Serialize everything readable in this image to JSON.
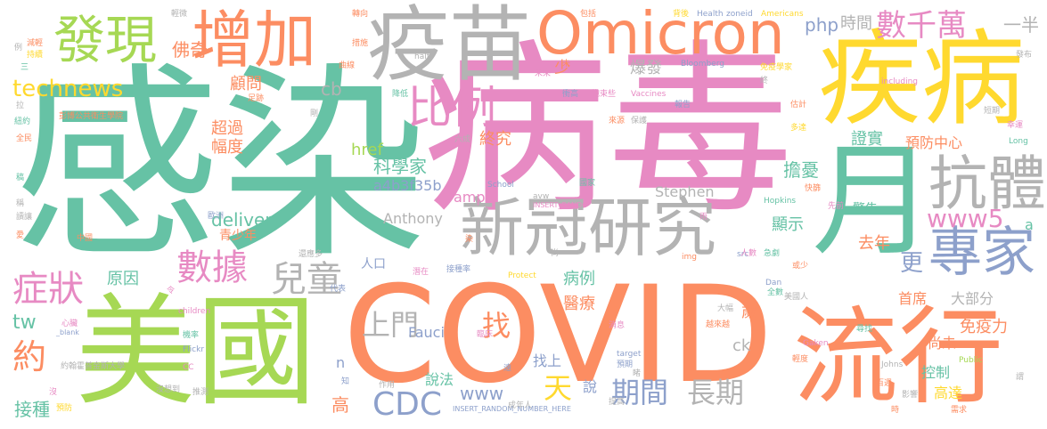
{
  "colors": {
    "teal": "#66c2a5",
    "orange": "#fc8d62",
    "blue": "#8da0cb",
    "pink": "#e78ac3",
    "green": "#a6d854",
    "yellow": "#ffd92f",
    "tan": "#e5c494",
    "gray": "#b3b3b3"
  },
  "words": [
    {
      "text": "感染",
      "color": "teal"
    },
    {
      "text": "病毒",
      "color": "pink"
    },
    {
      "text": "COVID",
      "color": "orange"
    },
    {
      "text": "美國",
      "color": "green"
    },
    {
      "text": "月",
      "color": "teal"
    },
    {
      "text": "疾病",
      "color": "yellow"
    },
    {
      "text": "流行",
      "color": "orange"
    },
    {
      "text": "疫苗",
      "color": "gray"
    },
    {
      "text": "新冠研究",
      "color": "gray"
    },
    {
      "text": "Omicron",
      "color": "orange"
    },
    {
      "text": "增加",
      "color": "orange"
    },
    {
      "text": "發現",
      "color": "green"
    },
    {
      "text": "抗體",
      "color": "gray"
    },
    {
      "text": "專家",
      "color": "blue"
    },
    {
      "text": "比例",
      "color": "pink"
    },
    {
      "text": "數千萬",
      "color": "pink"
    },
    {
      "text": "technews",
      "color": "yellow"
    },
    {
      "text": "數據",
      "color": "pink"
    },
    {
      "text": "兒童",
      "color": "gray"
    },
    {
      "text": "症狀",
      "color": "pink"
    },
    {
      "text": "約",
      "color": "orange"
    },
    {
      "text": "CDC",
      "color": "blue"
    },
    {
      "text": "期間",
      "color": "blue"
    },
    {
      "text": "長期",
      "color": "gray"
    },
    {
      "text": "上門",
      "color": "gray"
    },
    {
      "text": "天",
      "color": "yellow"
    },
    {
      "text": "找",
      "color": "orange"
    },
    {
      "text": "www5",
      "color": "pink"
    },
    {
      "text": "php",
      "color": "blue"
    },
    {
      "text": "時間",
      "color": "gray"
    },
    {
      "text": "一半",
      "color": "gray"
    },
    {
      "text": "佛奇",
      "color": "orange"
    },
    {
      "text": "cb",
      "color": "gray"
    },
    {
      "text": "少",
      "color": "orange"
    },
    {
      "text": "爆發",
      "color": "gray"
    },
    {
      "text": "顧問",
      "color": "orange"
    },
    {
      "text": "超過",
      "color": "orange"
    },
    {
      "text": "幅度",
      "color": "orange"
    },
    {
      "text": "終究",
      "color": "orange"
    },
    {
      "text": "科學家",
      "color": "teal"
    },
    {
      "text": "a4b3f35b",
      "color": "blue"
    },
    {
      "text": "amp",
      "color": "pink"
    },
    {
      "text": "Stephen",
      "color": "gray"
    },
    {
      "text": "delivery",
      "color": "teal"
    },
    {
      "text": "Anthony",
      "color": "gray"
    },
    {
      "text": "青少年",
      "color": "orange"
    },
    {
      "text": "擔憂",
      "color": "teal"
    },
    {
      "text": "警告",
      "color": "teal"
    },
    {
      "text": "顯示",
      "color": "teal"
    },
    {
      "text": "去年",
      "color": "orange"
    },
    {
      "text": "更",
      "color": "blue"
    },
    {
      "text": "證實",
      "color": "teal"
    },
    {
      "text": "預防中心",
      "color": "orange"
    },
    {
      "text": "href",
      "color": "green"
    },
    {
      "text": "原因",
      "color": "teal"
    },
    {
      "text": "tw",
      "color": "teal"
    },
    {
      "text": "人口",
      "color": "blue"
    },
    {
      "text": "病例",
      "color": "teal"
    },
    {
      "text": "醫療",
      "color": "orange"
    },
    {
      "text": "首席",
      "color": "orange"
    },
    {
      "text": "大部分",
      "color": "gray"
    },
    {
      "text": "歲",
      "color": "orange"
    },
    {
      "text": "免疫力",
      "color": "orange"
    },
    {
      "text": "尚未",
      "color": "orange"
    },
    {
      "text": "ck",
      "color": "gray"
    },
    {
      "text": "Fauci",
      "color": "blue"
    },
    {
      "text": "控制",
      "color": "teal"
    },
    {
      "text": "高達",
      "color": "yellow"
    },
    {
      "text": "n",
      "color": "blue"
    },
    {
      "text": "找上",
      "color": "blue"
    },
    {
      "text": "說法",
      "color": "teal"
    },
    {
      "text": "說",
      "color": "blue"
    },
    {
      "text": "www",
      "color": "blue"
    },
    {
      "text": "高",
      "color": "orange"
    },
    {
      "text": "接種",
      "color": "teal"
    },
    {
      "text": "a",
      "color": "teal"
    },
    {
      "text": "Health",
      "color": "blue"
    },
    {
      "text": "Americans",
      "color": "yellow"
    },
    {
      "text": "Bloomberg",
      "color": "blue"
    },
    {
      "text": "Vaccines",
      "color": "pink"
    },
    {
      "text": "Hopkins",
      "color": "teal"
    },
    {
      "text": "School",
      "color": "blue"
    },
    {
      "text": "children",
      "color": "pink"
    },
    {
      "text": "Flickr",
      "color": "blue"
    },
    {
      "text": "Johns",
      "color": "gray"
    },
    {
      "text": "Public",
      "color": "green"
    },
    {
      "text": "Gaken",
      "color": "pink"
    },
    {
      "text": "Protect",
      "color": "yellow"
    },
    {
      "text": "Dan",
      "color": "blue"
    },
    {
      "text": "target",
      "color": "blue"
    },
    {
      "text": "Long",
      "color": "teal"
    },
    {
      "text": "including",
      "color": "pink"
    },
    {
      "text": "half",
      "color": "gray"
    },
    {
      "text": "img",
      "color": "orange"
    },
    {
      "text": "src",
      "color": "blue"
    },
    {
      "text": "avw",
      "color": "gray"
    },
    {
      "text": "zoneid",
      "color": "blue"
    },
    {
      "text": "INSERT_RANDO",
      "color": "pink"
    },
    {
      "text": "INSERT_RANDOM_NUMBER_HERE",
      "color": "blue"
    },
    {
      "text": "_blank",
      "color": "blue"
    },
    {
      "text": "CC",
      "color": "pink"
    },
    {
      "text": "約翰霍普金斯大學",
      "color": "gray"
    },
    {
      "text": "彭博公共衛生學院",
      "color": "orange"
    },
    {
      "text": "輕微",
      "color": "gray"
    },
    {
      "text": "轉向",
      "color": "orange"
    },
    {
      "text": "包括",
      "color": "orange"
    },
    {
      "text": "背後",
      "color": "yellow"
    },
    {
      "text": "減輕",
      "color": "orange"
    },
    {
      "text": "持續",
      "color": "yellow"
    },
    {
      "text": "曲線",
      "color": "orange"
    },
    {
      "text": "措施",
      "color": "orange"
    },
    {
      "text": "免疫學家",
      "color": "yellow"
    },
    {
      "text": "衝高",
      "color": "blue"
    },
    {
      "text": "抱束些",
      "color": "pink"
    },
    {
      "text": "報告",
      "color": "blue"
    },
    {
      "text": "估計",
      "color": "orange"
    },
    {
      "text": "短期",
      "color": "gray"
    },
    {
      "text": "降低",
      "color": "teal"
    },
    {
      "text": "足跡",
      "color": "orange"
    },
    {
      "text": "紐約",
      "color": "teal"
    },
    {
      "text": "全民",
      "color": "orange"
    },
    {
      "text": "幸運",
      "color": "pink"
    },
    {
      "text": "來源",
      "color": "orange"
    },
    {
      "text": "保護",
      "color": "gray"
    },
    {
      "text": "多達",
      "color": "yellow"
    },
    {
      "text": "六成",
      "color": "gray"
    },
    {
      "text": "國家",
      "color": "teal"
    },
    {
      "text": "快篩",
      "color": "orange"
    },
    {
      "text": "先前",
      "color": "pink"
    },
    {
      "text": "歐洲",
      "color": "blue"
    },
    {
      "text": "中國",
      "color": "orange"
    },
    {
      "text": "還應多",
      "color": "gray"
    },
    {
      "text": "接種率",
      "color": "blue"
    },
    {
      "text": "潛在",
      "color": "pink"
    },
    {
      "text": "人數",
      "color": "pink"
    },
    {
      "text": "急劇",
      "color": "teal"
    },
    {
      "text": "或少",
      "color": "orange"
    },
    {
      "text": "代表",
      "color": "blue"
    },
    {
      "text": "全數",
      "color": "teal"
    },
    {
      "text": "美國人",
      "color": "gray"
    },
    {
      "text": "大幅",
      "color": "gray"
    },
    {
      "text": "越來越",
      "color": "orange"
    },
    {
      "text": "尋找",
      "color": "teal"
    },
    {
      "text": "心臟",
      "color": "pink"
    },
    {
      "text": "臨床",
      "color": "pink"
    },
    {
      "text": "機率",
      "color": "teal"
    },
    {
      "text": "消息",
      "color": "pink"
    },
    {
      "text": "預期",
      "color": "blue"
    },
    {
      "text": "成年人",
      "color": "gray"
    },
    {
      "text": "提高",
      "color": "gray"
    },
    {
      "text": "輕度",
      "color": "orange"
    },
    {
      "text": "百週",
      "color": "orange"
    },
    {
      "text": "影響",
      "color": "gray"
    },
    {
      "text": "需求",
      "color": "orange"
    },
    {
      "text": "作用",
      "color": "gray"
    },
    {
      "text": "推測",
      "color": "gray"
    },
    {
      "text": "沒想到",
      "color": "gray"
    },
    {
      "text": "預防",
      "color": "yellow"
    },
    {
      "text": "未來",
      "color": "pink"
    },
    {
      "text": "發布",
      "color": "gray"
    },
    {
      "text": "三",
      "color": "teal"
    },
    {
      "text": "例",
      "color": "gray"
    },
    {
      "text": "稿",
      "color": "teal"
    },
    {
      "text": "讀讓",
      "color": "gray"
    },
    {
      "text": "愛",
      "color": "orange"
    },
    {
      "text": "雨",
      "color": "pink"
    },
    {
      "text": "遠",
      "color": "blue"
    },
    {
      "text": "沒",
      "color": "pink"
    },
    {
      "text": "知",
      "color": "blue"
    },
    {
      "text": "令",
      "color": "pink"
    },
    {
      "text": "睹",
      "color": "gray"
    },
    {
      "text": "時",
      "color": "orange"
    },
    {
      "text": "染",
      "color": "orange"
    },
    {
      "text": "尚",
      "color": "gray"
    },
    {
      "text": "未",
      "color": "orange"
    },
    {
      "text": "終",
      "color": "gray"
    },
    {
      "text": "剛",
      "color": "gray"
    },
    {
      "text": "拉",
      "color": "gray"
    },
    {
      "text": "稱",
      "color": "gray"
    },
    {
      "text": "謂",
      "color": "gray"
    }
  ]
}
